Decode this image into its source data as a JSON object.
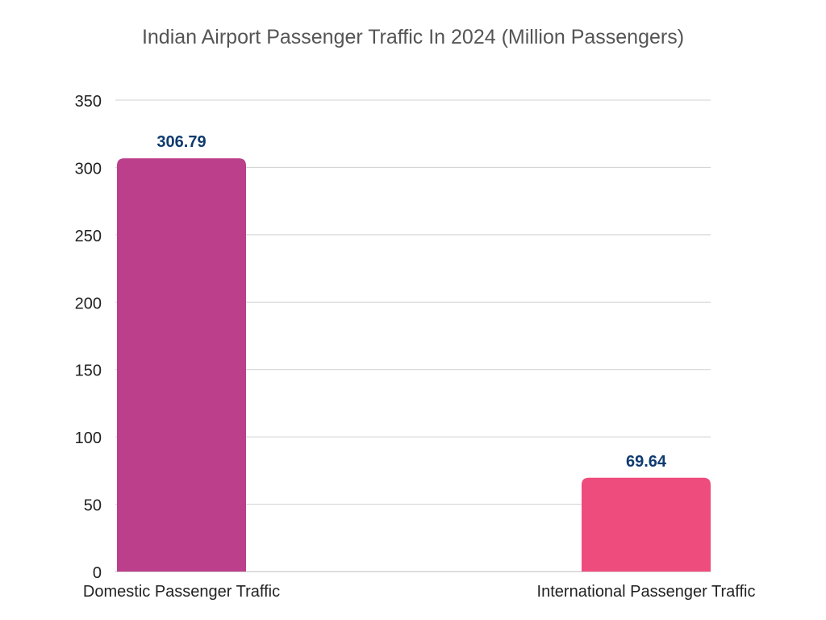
{
  "chart_data": {
    "type": "bar",
    "title": "Indian Airport Passenger Traffic In 2024 (Million Passengers)",
    "xlabel": "",
    "ylabel": "",
    "categories": [
      "Domestic Passenger Traffic",
      "International Passenger Traffic"
    ],
    "values": [
      306.79,
      69.64
    ],
    "data_labels": [
      "306.79",
      "69.64"
    ],
    "colors": [
      "#BB3F8A",
      "#EE4C7D"
    ],
    "label_color": "#0F3B6E",
    "ylim": [
      0,
      350
    ],
    "yticks": [
      0,
      50,
      100,
      150,
      200,
      250,
      300,
      350
    ],
    "grid": true,
    "legend": "none"
  }
}
